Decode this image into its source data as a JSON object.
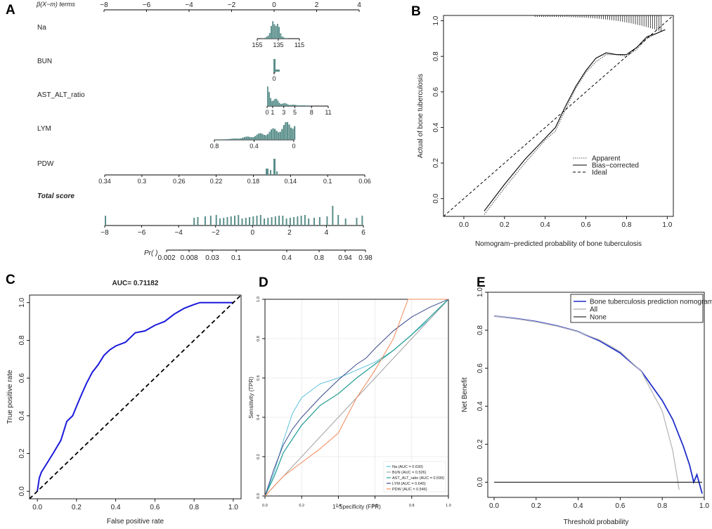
{
  "panels": {
    "A": {
      "label": "A",
      "type": "nomogram",
      "header": "β(X−m) terms",
      "beta_ticks": [
        "−8",
        "−6",
        "−4",
        "−2",
        "0",
        "2",
        "4"
      ],
      "vars": [
        {
          "name": "Na",
          "ticks": [
            "155",
            "135",
            "115"
          ]
        },
        {
          "name": "BUN",
          "ticks": [
            "0"
          ]
        },
        {
          "name": "AST_ALT_ratio",
          "ticks": [
            "0",
            "1",
            "3",
            "5",
            "8",
            "11"
          ]
        },
        {
          "name": "LYM",
          "ticks": [
            "0.8",
            "0.4",
            "0"
          ]
        },
        {
          "name": "PDW",
          "ticks": [
            "0.34",
            "0.3",
            "0.26",
            "0.22",
            "0.18",
            "0.14",
            "0.1",
            "0.06"
          ]
        }
      ],
      "total_label": "Total score",
      "total_ticks": [
        "−8",
        "−6",
        "−4",
        "−2",
        "0",
        "2",
        "4",
        "6"
      ],
      "pr_label": "Pr( )",
      "pr_ticks": [
        "0.002",
        "0.008",
        "0.03",
        "0.1",
        "0.4",
        "0.8",
        "0.94",
        "0.98"
      ]
    },
    "B": {
      "label": "B"
    },
    "C": {
      "label": "C"
    },
    "D": {
      "label": "D"
    },
    "E": {
      "label": "E"
    }
  },
  "chart_data": [
    {
      "panel": "B",
      "type": "line",
      "title": "",
      "xlabel": "Nomogram−predicted probability of bone tuberculosis",
      "ylabel": "Actual of bone tuberculosis",
      "xlim": [
        -0.1,
        1.03
      ],
      "ylim": [
        -0.1,
        1.03
      ],
      "xticks": [
        "0.0",
        "0.2",
        "0.4",
        "0.6",
        "0.8",
        "1.0"
      ],
      "yticks": [
        "0.0",
        "0.2",
        "0.4",
        "0.6",
        "0.8",
        "1.0"
      ],
      "legend": [
        "Apparent",
        "Bias−corrected",
        "Ideal"
      ],
      "series": [
        {
          "name": "Apparent",
          "points": [
            [
              0.1,
              -0.09
            ],
            [
              0.2,
              0.06
            ],
            [
              0.3,
              0.2
            ],
            [
              0.4,
              0.33
            ],
            [
              0.45,
              0.38
            ],
            [
              0.5,
              0.5
            ],
            [
              0.55,
              0.62
            ],
            [
              0.6,
              0.71
            ],
            [
              0.65,
              0.77
            ],
            [
              0.7,
              0.81
            ],
            [
              0.75,
              0.81
            ],
            [
              0.8,
              0.8
            ],
            [
              0.85,
              0.84
            ],
            [
              0.9,
              0.9
            ],
            [
              0.95,
              0.93
            ],
            [
              0.99,
              0.95
            ]
          ]
        },
        {
          "name": "Bias−corrected",
          "points": [
            [
              0.1,
              -0.07
            ],
            [
              0.2,
              0.08
            ],
            [
              0.3,
              0.22
            ],
            [
              0.4,
              0.34
            ],
            [
              0.45,
              0.4
            ],
            [
              0.5,
              0.52
            ],
            [
              0.55,
              0.63
            ],
            [
              0.6,
              0.72
            ],
            [
              0.65,
              0.79
            ],
            [
              0.7,
              0.82
            ],
            [
              0.75,
              0.81
            ],
            [
              0.8,
              0.81
            ],
            [
              0.85,
              0.85
            ],
            [
              0.9,
              0.91
            ],
            [
              0.95,
              0.93
            ],
            [
              0.99,
              0.95
            ]
          ]
        },
        {
          "name": "Ideal",
          "points": [
            [
              -0.1,
              -0.1
            ],
            [
              1.03,
              1.03
            ]
          ]
        }
      ]
    },
    {
      "panel": "C",
      "type": "line",
      "title": "AUC= 0.71182",
      "xlabel": "False positive rate",
      "ylabel": "True positive rate",
      "xlim": [
        -0.04,
        1.04
      ],
      "ylim": [
        -0.04,
        1.04
      ],
      "xticks": [
        "0.0",
        "0.2",
        "0.4",
        "0.6",
        "0.8",
        "1.0"
      ],
      "yticks": [
        "0.0",
        "0.2",
        "0.4",
        "0.6",
        "0.8",
        "1.0"
      ],
      "series": [
        {
          "name": "ROC",
          "points": [
            [
              0,
              0
            ],
            [
              0.01,
              0.07
            ],
            [
              0.02,
              0.1
            ],
            [
              0.05,
              0.15
            ],
            [
              0.08,
              0.2
            ],
            [
              0.12,
              0.27
            ],
            [
              0.15,
              0.37
            ],
            [
              0.18,
              0.4
            ],
            [
              0.2,
              0.45
            ],
            [
              0.22,
              0.5
            ],
            [
              0.25,
              0.57
            ],
            [
              0.28,
              0.63
            ],
            [
              0.31,
              0.67
            ],
            [
              0.34,
              0.72
            ],
            [
              0.37,
              0.75
            ],
            [
              0.4,
              0.77
            ],
            [
              0.45,
              0.79
            ],
            [
              0.5,
              0.84
            ],
            [
              0.55,
              0.85
            ],
            [
              0.6,
              0.88
            ],
            [
              0.65,
              0.9
            ],
            [
              0.7,
              0.94
            ],
            [
              0.75,
              0.97
            ],
            [
              0.8,
              0.99
            ],
            [
              0.83,
              1.0
            ],
            [
              1.0,
              1.0
            ]
          ]
        },
        {
          "name": "Chance",
          "points": [
            [
              -0.04,
              -0.04
            ],
            [
              1.04,
              1.04
            ]
          ]
        }
      ]
    },
    {
      "panel": "D",
      "type": "line",
      "title": "",
      "xlabel": "1−Specificity (FPR)",
      "ylabel": "Sensitivity (TPR)",
      "xlim": [
        0,
        1
      ],
      "ylim": [
        0,
        1
      ],
      "xticks": [
        "0.0",
        "0.2",
        "0.4",
        "0.6",
        "0.8",
        "1.0"
      ],
      "yticks": [
        "0.0",
        "0.2",
        "0.4",
        "0.6",
        "0.8",
        "1.0"
      ],
      "series": [
        {
          "name": "Na (AUC = 0.630)",
          "color": "#5bc0de",
          "points": [
            [
              0,
              0
            ],
            [
              0.05,
              0.12
            ],
            [
              0.1,
              0.28
            ],
            [
              0.15,
              0.42
            ],
            [
              0.2,
              0.5
            ],
            [
              0.3,
              0.57
            ],
            [
              0.4,
              0.6
            ],
            [
              0.5,
              0.64
            ],
            [
              0.6,
              0.68
            ],
            [
              0.7,
              0.74
            ],
            [
              0.8,
              0.82
            ],
            [
              0.9,
              0.9
            ],
            [
              1,
              1
            ]
          ]
        },
        {
          "name": "BUN (AUC = 0.526)",
          "color": "#a0a0a0",
          "points": [
            [
              0,
              0
            ],
            [
              1,
              1
            ]
          ]
        },
        {
          "name": "AST_ALT_ratio (AUC = 0.599)",
          "color": "#2aa198",
          "points": [
            [
              0,
              0
            ],
            [
              0.05,
              0.1
            ],
            [
              0.1,
              0.22
            ],
            [
              0.2,
              0.36
            ],
            [
              0.3,
              0.46
            ],
            [
              0.4,
              0.52
            ],
            [
              0.5,
              0.6
            ],
            [
              0.6,
              0.67
            ],
            [
              0.7,
              0.74
            ],
            [
              0.8,
              0.82
            ],
            [
              0.9,
              0.91
            ],
            [
              1,
              1
            ]
          ]
        },
        {
          "name": "LYM (AUC = 0.645)",
          "color": "#3b4a8c",
          "points": [
            [
              0,
              0
            ],
            [
              0.05,
              0.14
            ],
            [
              0.1,
              0.26
            ],
            [
              0.15,
              0.34
            ],
            [
              0.2,
              0.4
            ],
            [
              0.3,
              0.5
            ],
            [
              0.4,
              0.59
            ],
            [
              0.5,
              0.67
            ],
            [
              0.55,
              0.7
            ],
            [
              0.6,
              0.75
            ],
            [
              0.7,
              0.84
            ],
            [
              0.8,
              0.91
            ],
            [
              0.9,
              0.96
            ],
            [
              1,
              1
            ]
          ]
        },
        {
          "name": "PDW (AUC = 0.546)",
          "color": "#f28a5a",
          "points": [
            [
              0,
              0
            ],
            [
              0.1,
              0.1
            ],
            [
              0.2,
              0.17
            ],
            [
              0.3,
              0.24
            ],
            [
              0.4,
              0.32
            ],
            [
              0.5,
              0.5
            ],
            [
              0.6,
              0.64
            ],
            [
              0.7,
              0.8
            ],
            [
              0.78,
              1.0
            ],
            [
              1,
              1
            ]
          ]
        }
      ]
    },
    {
      "panel": "E",
      "type": "line",
      "title": "",
      "xlabel": "Threshold probability",
      "ylabel": "Net Benefit",
      "xlim": [
        -0.03,
        1.0
      ],
      "ylim": [
        -0.08,
        1.0
      ],
      "xticks": [
        "0.0",
        "0.2",
        "0.4",
        "0.6",
        "0.8",
        "1.0"
      ],
      "yticks": [
        "0.0",
        "0.2",
        "0.4",
        "0.6",
        "0.8",
        "1.0"
      ],
      "legend": [
        "Bone tuberculosis prediction nomogram",
        "All",
        "None"
      ],
      "series": [
        {
          "name": "Bone tuberculosis prediction nomogram",
          "color": "#1f2fc8",
          "points": [
            [
              0,
              0.875
            ],
            [
              0.1,
              0.862
            ],
            [
              0.2,
              0.846
            ],
            [
              0.3,
              0.823
            ],
            [
              0.4,
              0.793
            ],
            [
              0.5,
              0.745
            ],
            [
              0.6,
              0.68
            ],
            [
              0.7,
              0.585
            ],
            [
              0.8,
              0.43
            ],
            [
              0.85,
              0.33
            ],
            [
              0.9,
              0.19
            ],
            [
              0.93,
              0.09
            ],
            [
              0.95,
              0.0
            ],
            [
              0.965,
              0.04
            ],
            [
              0.98,
              -0.02
            ],
            [
              0.99,
              -0.06
            ]
          ]
        },
        {
          "name": "All",
          "color": "#c0c0c0",
          "points": [
            [
              0,
              0.875
            ],
            [
              0.1,
              0.861
            ],
            [
              0.2,
              0.844
            ],
            [
              0.3,
              0.821
            ],
            [
              0.4,
              0.792
            ],
            [
              0.5,
              0.75
            ],
            [
              0.6,
              0.688
            ],
            [
              0.7,
              0.583
            ],
            [
              0.8,
              0.375
            ],
            [
              0.85,
              0.167
            ],
            [
              0.875,
              0.0
            ],
            [
              0.88,
              -0.04
            ]
          ]
        },
        {
          "name": "None",
          "color": "#000000",
          "points": [
            [
              0,
              0
            ],
            [
              0.99,
              0
            ]
          ]
        }
      ]
    }
  ]
}
